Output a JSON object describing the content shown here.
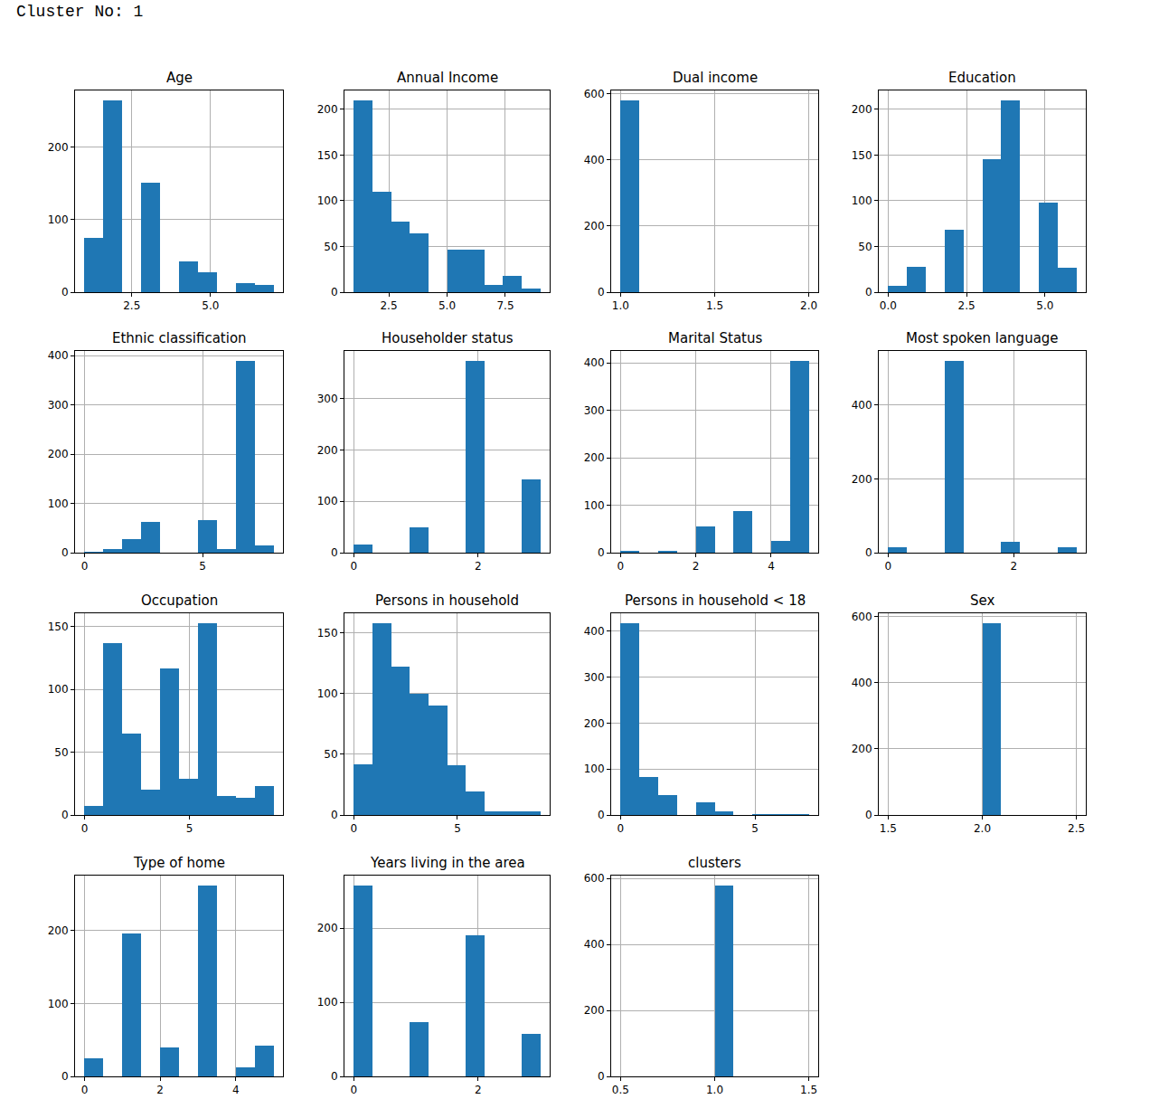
{
  "header": "Cluster No: 1",
  "chart_data": [
    {
      "type": "histogram",
      "title": "Age",
      "bins": [
        1,
        1.6,
        2.2,
        2.8,
        3.4,
        4,
        4.6,
        5.2,
        5.8,
        6.4,
        7
      ],
      "counts": [
        75,
        265,
        0,
        151,
        0,
        42,
        27,
        0,
        12,
        10
      ],
      "xlim": [
        0.7,
        7.3
      ],
      "xticks": [
        2.5,
        {
          "value": 5,
          "label": "5.0"
        }
      ],
      "ylim": [
        0,
        278.25
      ],
      "yticks": [
        0,
        100,
        200
      ],
      "grid": true,
      "color": "#1f77b4"
    },
    {
      "type": "histogram",
      "title": "Annual Income",
      "bins": [
        1,
        1.8,
        2.6,
        3.4,
        4.2,
        5,
        5.8,
        6.6,
        7.4,
        8.2,
        9
      ],
      "counts": [
        210,
        110,
        77,
        64,
        0,
        46,
        46,
        8,
        18,
        4
      ],
      "xlim": [
        0.6,
        9.4
      ],
      "xticks": [
        2.5,
        {
          "value": 5,
          "label": "5.0"
        },
        7.5
      ],
      "ylim": [
        0,
        220.5
      ],
      "yticks": [
        0,
        50,
        100,
        150,
        200
      ],
      "grid": true,
      "color": "#1f77b4"
    },
    {
      "type": "histogram",
      "title": "Dual income",
      "bins": [
        1,
        1.1,
        1.2,
        1.3,
        1.4,
        1.5,
        1.6,
        1.7,
        1.8,
        1.9,
        2
      ],
      "counts": [
        580,
        0,
        0,
        0,
        0,
        0,
        0,
        0,
        0,
        0
      ],
      "xlim": [
        0.95,
        2.05
      ],
      "xticks": [
        {
          "value": 1,
          "label": "1.0"
        },
        1.5,
        {
          "value": 2,
          "label": "2.0"
        }
      ],
      "ylim": [
        0,
        609
      ],
      "yticks": [
        0,
        200,
        400,
        600
      ],
      "grid": true,
      "color": "#1f77b4"
    },
    {
      "type": "histogram",
      "title": "Education",
      "bins": [
        0,
        0.6,
        1.2,
        1.8,
        2.4,
        3,
        3.6,
        4.2,
        4.8,
        5.4,
        6
      ],
      "counts": [
        7,
        28,
        0,
        68,
        0,
        145,
        210,
        0,
        98,
        27
      ],
      "xlim": [
        -0.3,
        6.3
      ],
      "xticks": [
        {
          "value": 0,
          "label": "0.0"
        },
        2.5,
        {
          "value": 5,
          "label": "5.0"
        }
      ],
      "ylim": [
        0,
        220.5
      ],
      "yticks": [
        0,
        50,
        100,
        150,
        200
      ],
      "grid": true,
      "color": "#1f77b4"
    },
    {
      "type": "histogram",
      "title": "Ethnic classification",
      "bins": [
        0,
        0.8,
        1.6,
        2.4,
        3.2,
        4,
        4.8,
        5.6,
        6.4,
        7.2,
        8
      ],
      "counts": [
        1,
        8,
        27,
        63,
        0,
        0,
        67,
        8,
        390,
        15
      ],
      "xlim": [
        -0.4,
        8.4
      ],
      "xticks": [
        0,
        5
      ],
      "ylim": [
        0,
        409.5
      ],
      "yticks": [
        0,
        100,
        200,
        300,
        400
      ],
      "grid": true,
      "color": "#1f77b4"
    },
    {
      "type": "histogram",
      "title": "Householder status",
      "bins": [
        0,
        0.3,
        0.6,
        0.9,
        1.2,
        1.5,
        1.8,
        2.1,
        2.4,
        2.7,
        3
      ],
      "counts": [
        15,
        0,
        0,
        50,
        0,
        0,
        374,
        0,
        0,
        143
      ],
      "xlim": [
        -0.15,
        3.15
      ],
      "xticks": [
        0,
        2
      ],
      "ylim": [
        0,
        392.7
      ],
      "yticks": [
        0,
        100,
        200,
        300
      ],
      "grid": true,
      "color": "#1f77b4"
    },
    {
      "type": "histogram",
      "title": "Marital Status",
      "bins": [
        0,
        0.5,
        1,
        1.5,
        2,
        2.5,
        3,
        3.5,
        4,
        4.5,
        5
      ],
      "counts": [
        4,
        0,
        3,
        0,
        55,
        0,
        88,
        0,
        25,
        405
      ],
      "xlim": [
        -0.25,
        5.25
      ],
      "xticks": [
        0,
        2,
        4
      ],
      "ylim": [
        0,
        425.25
      ],
      "yticks": [
        0,
        100,
        200,
        300,
        400
      ],
      "grid": true,
      "color": "#1f77b4"
    },
    {
      "type": "histogram",
      "title": "Most spoken language",
      "bins": [
        0,
        0.3,
        0.6,
        0.9,
        1.2,
        1.5,
        1.8,
        2.1,
        2.4,
        2.7,
        3
      ],
      "counts": [
        15,
        0,
        0,
        520,
        0,
        0,
        30,
        0,
        0,
        15
      ],
      "xlim": [
        -0.15,
        3.15
      ],
      "xticks": [
        0,
        2
      ],
      "ylim": [
        0,
        546
      ],
      "yticks": [
        0,
        200,
        400
      ],
      "grid": true,
      "color": "#1f77b4"
    },
    {
      "type": "histogram",
      "title": "Occupation",
      "bins": [
        0,
        0.9,
        1.8,
        2.7,
        3.6,
        4.5,
        5.4,
        6.3,
        7.2,
        8.1,
        9
      ],
      "counts": [
        7,
        137,
        65,
        20,
        117,
        29,
        153,
        15,
        14,
        23
      ],
      "xlim": [
        -0.45,
        9.45
      ],
      "xticks": [
        0,
        5
      ],
      "ylim": [
        0,
        160.65
      ],
      "yticks": [
        0,
        50,
        100,
        150
      ],
      "grid": true,
      "color": "#1f77b4"
    },
    {
      "type": "histogram",
      "title": "Persons in household",
      "bins": [
        0,
        0.9,
        1.8,
        2.7,
        3.6,
        4.5,
        5.4,
        6.3,
        7.2,
        8.1,
        9
      ],
      "counts": [
        42,
        158,
        122,
        100,
        90,
        41,
        19,
        3,
        3,
        3
      ],
      "xlim": [
        -0.45,
        9.45
      ],
      "xticks": [
        0,
        5
      ],
      "ylim": [
        0,
        165.9
      ],
      "yticks": [
        0,
        50,
        100,
        150
      ],
      "grid": true,
      "color": "#1f77b4"
    },
    {
      "type": "histogram",
      "title": "Persons in household < 18",
      "bins": [
        0,
        0.7,
        1.4,
        2.1,
        2.8,
        3.5,
        4.2,
        4.9,
        5.6,
        6.3,
        7
      ],
      "counts": [
        418,
        82,
        43,
        0,
        27,
        8,
        0,
        2,
        2,
        1
      ],
      "xlim": [
        -0.35,
        7.35
      ],
      "xticks": [
        0,
        5
      ],
      "ylim": [
        0,
        438.9
      ],
      "yticks": [
        0,
        100,
        200,
        300,
        400
      ],
      "grid": true,
      "color": "#1f77b4"
    },
    {
      "type": "histogram",
      "title": "Sex",
      "bins": [
        1.5,
        1.6,
        1.7,
        1.8,
        1.9,
        2,
        2.1,
        2.2,
        2.3,
        2.4,
        2.5
      ],
      "counts": [
        0,
        0,
        0,
        0,
        0,
        580,
        0,
        0,
        0,
        0
      ],
      "xlim": [
        1.45,
        2.55
      ],
      "xticks": [
        1.5,
        {
          "value": 2,
          "label": "2.0"
        },
        2.5
      ],
      "ylim": [
        0,
        609
      ],
      "yticks": [
        0,
        200,
        400,
        600
      ],
      "grid": true,
      "color": "#1f77b4"
    },
    {
      "type": "histogram",
      "title": "Type of home",
      "bins": [
        0,
        0.5,
        1,
        1.5,
        2,
        2.5,
        3,
        3.5,
        4,
        4.5,
        5
      ],
      "counts": [
        25,
        0,
        196,
        0,
        40,
        0,
        262,
        0,
        12,
        42
      ],
      "xlim": [
        -0.25,
        5.25
      ],
      "xticks": [
        0,
        2,
        4
      ],
      "ylim": [
        0,
        275.1
      ],
      "yticks": [
        0,
        100,
        200
      ],
      "grid": true,
      "color": "#1f77b4"
    },
    {
      "type": "histogram",
      "title": "Years living in the area",
      "bins": [
        0,
        0.3,
        0.6,
        0.9,
        1.2,
        1.5,
        1.8,
        2.1,
        2.4,
        2.7,
        3
      ],
      "counts": [
        258,
        0,
        0,
        73,
        0,
        0,
        190,
        0,
        0,
        57
      ],
      "xlim": [
        -0.15,
        3.15
      ],
      "xticks": [
        0,
        2
      ],
      "ylim": [
        0,
        270.9
      ],
      "yticks": [
        0,
        100,
        200
      ],
      "grid": true,
      "color": "#1f77b4"
    },
    {
      "type": "histogram",
      "title": "clusters",
      "bins": [
        0.5,
        0.6,
        0.7,
        0.8,
        0.9,
        1,
        1.1,
        1.2,
        1.3,
        1.4,
        1.5
      ],
      "counts": [
        0,
        0,
        0,
        0,
        0,
        580,
        0,
        0,
        0,
        0
      ],
      "xlim": [
        0.45,
        1.55
      ],
      "xticks": [
        0.5,
        {
          "value": 1,
          "label": "1.0"
        },
        1.5
      ],
      "ylim": [
        0,
        609
      ],
      "yticks": [
        0,
        200,
        400,
        600
      ],
      "grid": true,
      "color": "#1f77b4"
    }
  ]
}
